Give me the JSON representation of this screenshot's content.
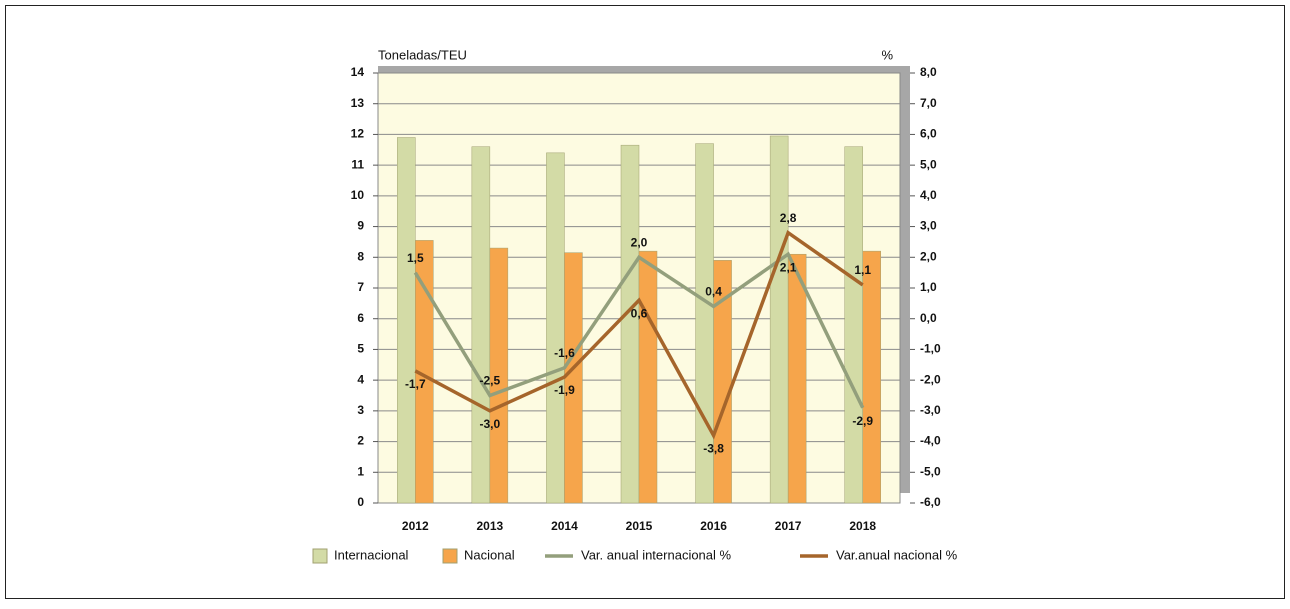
{
  "chart_data": {
    "type": "bar",
    "y_axis_label": "Toneladas/TEU",
    "y2_axis_label": "%",
    "categories": [
      "2012",
      "2013",
      "2014",
      "2015",
      "2016",
      "2017",
      "2018"
    ],
    "series": [
      {
        "name": "Internacional",
        "color": "#d3dba6",
        "values": [
          11.9,
          11.6,
          11.4,
          11.65,
          11.7,
          11.95,
          11.6
        ]
      },
      {
        "name": "Nacional",
        "color": "#f6a54b",
        "values": [
          8.55,
          8.3,
          8.15,
          8.2,
          7.9,
          8.1,
          8.2
        ]
      },
      {
        "name": "Var. anual internacional %",
        "type": "line",
        "axis": "y2",
        "color": "#939f7c",
        "values": [
          1.5,
          -2.5,
          -1.6,
          2.0,
          0.4,
          2.1,
          -2.9
        ],
        "value_labels": [
          "1,5",
          "-2,5",
          "-1,6",
          "2,0",
          "0,4",
          "2,1",
          "-2,9"
        ]
      },
      {
        "name": "Var.anual nacional %",
        "type": "line",
        "axis": "y2",
        "color": "#a5652b",
        "values": [
          -1.7,
          -3.0,
          -1.9,
          0.6,
          -3.8,
          2.8,
          1.1
        ],
        "value_labels": [
          "-1,7",
          "-3,0",
          "-1,9",
          "0,6",
          "-3,8",
          "2,8",
          "1,1"
        ]
      }
    ],
    "ylim": [
      0,
      14
    ],
    "yticks": [
      0,
      1,
      2,
      3,
      4,
      5,
      6,
      7,
      8,
      9,
      10,
      11,
      12,
      13,
      14
    ],
    "y2lim": [
      -6,
      8
    ],
    "y2ticks": [
      {
        "value": -6,
        "label": "-6,0"
      },
      {
        "value": -5,
        "label": "-5,0"
      },
      {
        "value": -4,
        "label": "-4,0"
      },
      {
        "value": -3,
        "label": "-3,0"
      },
      {
        "value": -2,
        "label": "-2,0"
      },
      {
        "value": -1,
        "label": "-1,0"
      },
      {
        "value": 0,
        "label": "0,0"
      },
      {
        "value": 1,
        "label": "1,0"
      },
      {
        "value": 2,
        "label": "2,0"
      },
      {
        "value": 3,
        "label": "3,0"
      },
      {
        "value": 4,
        "label": "4,0"
      },
      {
        "value": 5,
        "label": "5,0"
      },
      {
        "value": 6,
        "label": "6,0"
      },
      {
        "value": 7,
        "label": "7,0"
      },
      {
        "value": 8,
        "label": "8,0"
      }
    ],
    "grid": true
  }
}
